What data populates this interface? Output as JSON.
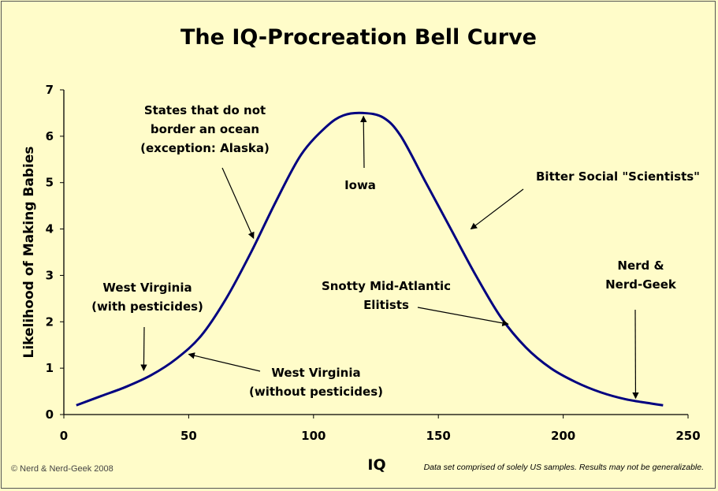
{
  "chart_data": {
    "type": "line",
    "title": "The IQ-Procreation Bell Curve",
    "xlabel": "IQ",
    "ylabel": "Likelihood of Making Babies",
    "xlim": [
      0,
      250
    ],
    "ylim": [
      0,
      7
    ],
    "xticks": [
      "0",
      "50",
      "100",
      "150",
      "200",
      "250"
    ],
    "yticks": [
      "0",
      "1",
      "2",
      "3",
      "4",
      "5",
      "6",
      "7"
    ],
    "grid": false,
    "series": [
      {
        "x": [
          5,
          15,
          25,
          35,
          45,
          55,
          65,
          75,
          85,
          95,
          105,
          112,
          120,
          128,
          135,
          145,
          155,
          165,
          175,
          185,
          195,
          205,
          215,
          225,
          235,
          240
        ],
        "y": [
          0.2,
          0.4,
          0.6,
          0.85,
          1.2,
          1.7,
          2.5,
          3.5,
          4.6,
          5.6,
          6.2,
          6.45,
          6.5,
          6.4,
          6.0,
          5.0,
          4.0,
          3.0,
          2.1,
          1.45,
          1.0,
          0.7,
          0.48,
          0.33,
          0.24,
          0.2
        ],
        "color": "#000080"
      }
    ],
    "annotations": [
      {
        "text": "States that do not border an ocean (exception: Alaska)",
        "lines": [
          "States that do not",
          "border an ocean",
          "(exception: Alaska)"
        ],
        "x": 76,
        "y": 3.8
      },
      {
        "text": "Iowa",
        "lines": [
          "Iowa"
        ],
        "x": 120,
        "y": 6.5
      },
      {
        "text": "Bitter Social \"Scientists\"",
        "lines": [
          "Bitter Social \"Scientists\""
        ],
        "x": 163,
        "y": 4.0
      },
      {
        "text": "West Virginia (with pesticides)",
        "lines": [
          "West Virginia",
          "(with pesticides)"
        ],
        "x": 32,
        "y": 0.95
      },
      {
        "text": "West Virginia (without pesticides)",
        "lines": [
          "West Virginia",
          "(without pesticides)"
        ],
        "x": 50,
        "y": 1.3
      },
      {
        "text": "Snotty Mid-Atlantic Elitists",
        "lines": [
          "Snotty Mid-Atlantic",
          "Elitists"
        ],
        "x": 178,
        "y": 1.95
      },
      {
        "text": "Nerd & Nerd-Geek",
        "lines": [
          "Nerd &",
          "Nerd-Geek"
        ],
        "x": 229,
        "y": 0.35
      }
    ]
  },
  "footer": {
    "copyright": "© Nerd & Nerd-Geek 2008",
    "disclaimer": "Data set comprised of solely US samples. Results may not be generalizable."
  }
}
